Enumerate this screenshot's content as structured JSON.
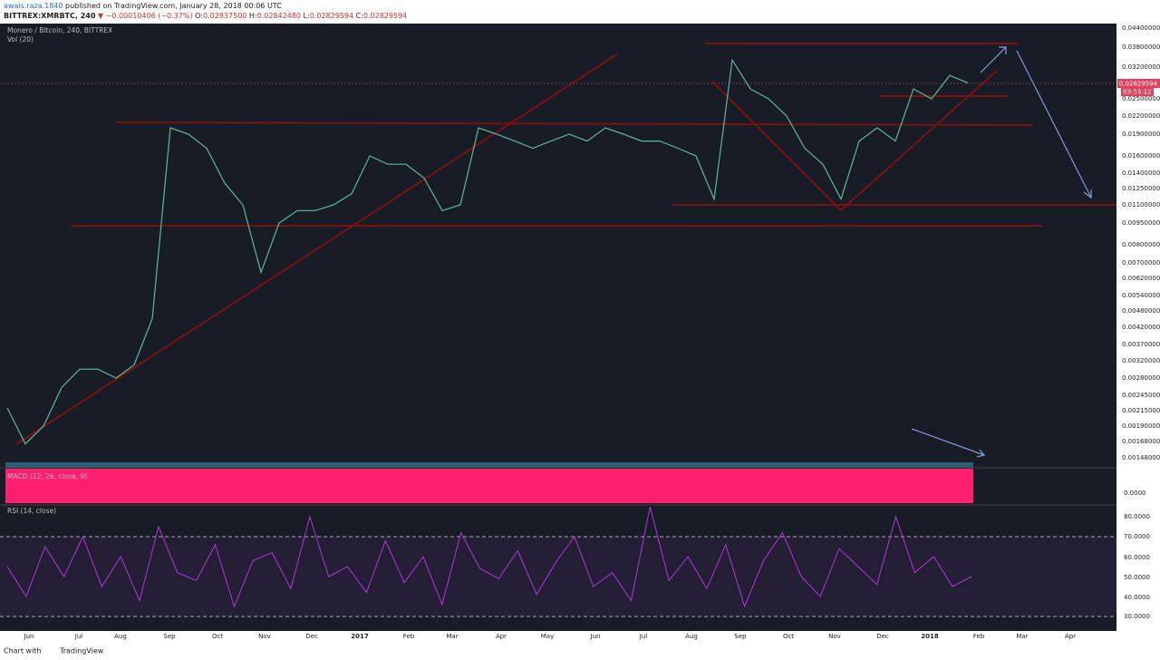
{
  "header": {
    "author": "awais.raza.1840",
    "published": " published on TradingView.com, January 28, 2018 00:06 UTC",
    "symbol": "BITTREX:XMRBTC, 240",
    "change": " ▼ −0.00010406 (−0.37%)",
    "ohlc": [
      {
        "k": " O:",
        "v": "0.02837500"
      },
      {
        "k": " H:",
        "v": "0.02842480"
      },
      {
        "k": " L:",
        "v": "0.02829594"
      },
      {
        "k": " C:",
        "v": "0.02829594"
      }
    ]
  },
  "chart": {
    "legend": "Monero / Bitcoin, 240, BITTREX",
    "volume_label": "Vol (20)",
    "macd_label": "MACD (12, 26, close, 9)",
    "rsi_label": "RSI (14, close)",
    "last_price": "0.02829594",
    "countdown": "03:53:12",
    "price_axis": [
      "0.04400000",
      "0.03800000",
      "0.03200000",
      "0.02500000",
      "0.02200000",
      "0.01900000",
      "0.01600000",
      "0.01400000",
      "0.01250000",
      "0.01100000",
      "0.00950000",
      "0.00800000",
      "0.00700000",
      "0.00620000",
      "0.00540000",
      "0.00480000",
      "0.00420000",
      "0.00370000",
      "0.00320000",
      "0.00280000",
      "0.00245000",
      "0.00215000",
      "0.00190000",
      "0.00168000",
      "0.00148000"
    ],
    "macd_axis": [
      "0.0000"
    ],
    "rsi_axis": [
      "80.0000",
      "70.0000",
      "60.0000",
      "50.0000",
      "40.0000",
      "30.0000"
    ],
    "time_axis": [
      "Jun",
      "Jul",
      "Aug",
      "Sep",
      "Oct",
      "Nov",
      "Dec",
      "2017",
      "Feb",
      "Mar",
      "Apr",
      "May",
      "Jun",
      "Jul",
      "Aug",
      "Sep",
      "Oct",
      "Nov",
      "Dec",
      "2018",
      "Feb",
      "Mar",
      "Apr"
    ],
    "price": [
      0.0022,
      0.00165,
      0.0019,
      0.0026,
      0.003,
      0.003,
      0.0028,
      0.0031,
      0.0045,
      0.02,
      0.019,
      0.017,
      0.013,
      0.011,
      0.0065,
      0.0095,
      0.0105,
      0.0105,
      0.011,
      0.012,
      0.016,
      0.015,
      0.015,
      0.0135,
      0.0105,
      0.011,
      0.02,
      0.019,
      0.018,
      0.017,
      0.018,
      0.019,
      0.018,
      0.02,
      0.019,
      0.018,
      0.018,
      0.017,
      0.016,
      0.0115,
      0.034,
      0.027,
      0.025,
      0.022,
      0.017,
      0.015,
      0.0115,
      0.018,
      0.02,
      0.018,
      0.027,
      0.025,
      0.03,
      0.0283
    ],
    "rsi": [
      55,
      40,
      65,
      50,
      70,
      45,
      60,
      38,
      75,
      52,
      48,
      66,
      35,
      58,
      62,
      44,
      80,
      50,
      55,
      42,
      68,
      47,
      60,
      36,
      72,
      54,
      49,
      63,
      41,
      57,
      70,
      45,
      52,
      38,
      85,
      48,
      60,
      44,
      66,
      35,
      58,
      72,
      50,
      40,
      64,
      55,
      46,
      80,
      52,
      60,
      45,
      50
    ]
  },
  "footer": {
    "text": "Chart with",
    "brand": "TradingView"
  }
}
